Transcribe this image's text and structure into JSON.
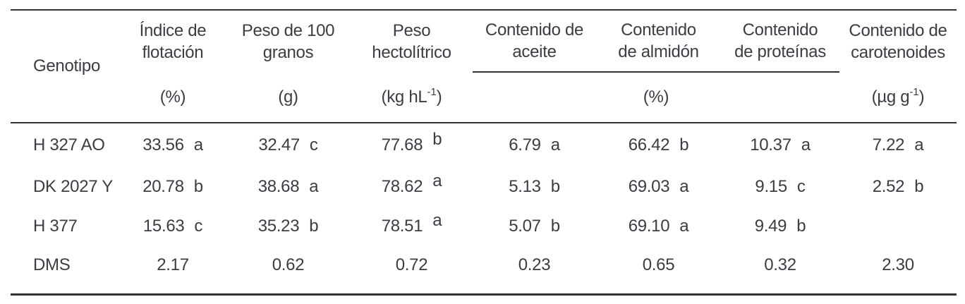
{
  "table": {
    "header": {
      "genotipo": "Genotipo",
      "flotacion": {
        "line1": "Índice de",
        "line2": "flotación",
        "unit": "(%)"
      },
      "granos": {
        "line1": "Peso de 100",
        "line2": "granos",
        "unit": "(g)"
      },
      "hectolitrico": {
        "line1": "Peso",
        "line2": "hectolítrico",
        "unit_main": "(kg hL",
        "unit_sup": "-1",
        "unit_end": ")"
      },
      "aceite": {
        "line1": "Contenido de",
        "line2": "aceite"
      },
      "almidon": {
        "line1": "Contenido",
        "line2": "de almidón"
      },
      "proteinas": {
        "line1": "Contenido",
        "line2": "de proteínas"
      },
      "group_unit": "(%)",
      "carotenoides": {
        "line1": "Contenido de",
        "line2": "carotenoides",
        "unit_main": "(µg g",
        "unit_sup": "-1",
        "unit_end": ")"
      }
    },
    "rows": [
      {
        "name": "H 327 AO",
        "flotacion": {
          "v": "33.56",
          "s": "a"
        },
        "granos": {
          "v": "32.47",
          "s": "c"
        },
        "hectolitrico": {
          "v": "77.68",
          "s": "b"
        },
        "aceite": {
          "v": "6.79",
          "s": "a"
        },
        "almidon": {
          "v": "66.42",
          "s": "b"
        },
        "proteinas": {
          "v": "10.37",
          "s": "a"
        },
        "carotenoides": {
          "v": "7.22",
          "s": "a"
        }
      },
      {
        "name": "DK 2027 Y",
        "flotacion": {
          "v": "20.78",
          "s": "b"
        },
        "granos": {
          "v": "38.68",
          "s": "a"
        },
        "hectolitrico": {
          "v": "78.62",
          "s": "a"
        },
        "aceite": {
          "v": "5.13",
          "s": "b"
        },
        "almidon": {
          "v": "69.03",
          "s": "a"
        },
        "proteinas": {
          "v": "9.15",
          "s": "c"
        },
        "carotenoides": {
          "v": "2.52",
          "s": "b"
        }
      },
      {
        "name": "H 377",
        "flotacion": {
          "v": "15.63",
          "s": "c"
        },
        "granos": {
          "v": "35.23",
          "s": "b"
        },
        "hectolitrico": {
          "v": "78.51",
          "s": "a"
        },
        "aceite": {
          "v": "5.07",
          "s": "b"
        },
        "almidon": {
          "v": "69.10",
          "s": "a"
        },
        "proteinas": {
          "v": "9.49",
          "s": "b"
        },
        "carotenoides": {
          "v": "",
          "s": ""
        }
      },
      {
        "name": "DMS",
        "flotacion": {
          "v": "2.17",
          "s": ""
        },
        "granos": {
          "v": "0.62",
          "s": ""
        },
        "hectolitrico": {
          "v": "0.72",
          "s": ""
        },
        "aceite": {
          "v": "0.23",
          "s": ""
        },
        "almidon": {
          "v": "0.65",
          "s": ""
        },
        "proteinas": {
          "v": "0.32",
          "s": ""
        },
        "carotenoides": {
          "v": "2.30",
          "s": ""
        }
      }
    ],
    "colors": {
      "text": "#3a3d44",
      "rule": "#2e3136",
      "background": "#ffffff"
    }
  }
}
